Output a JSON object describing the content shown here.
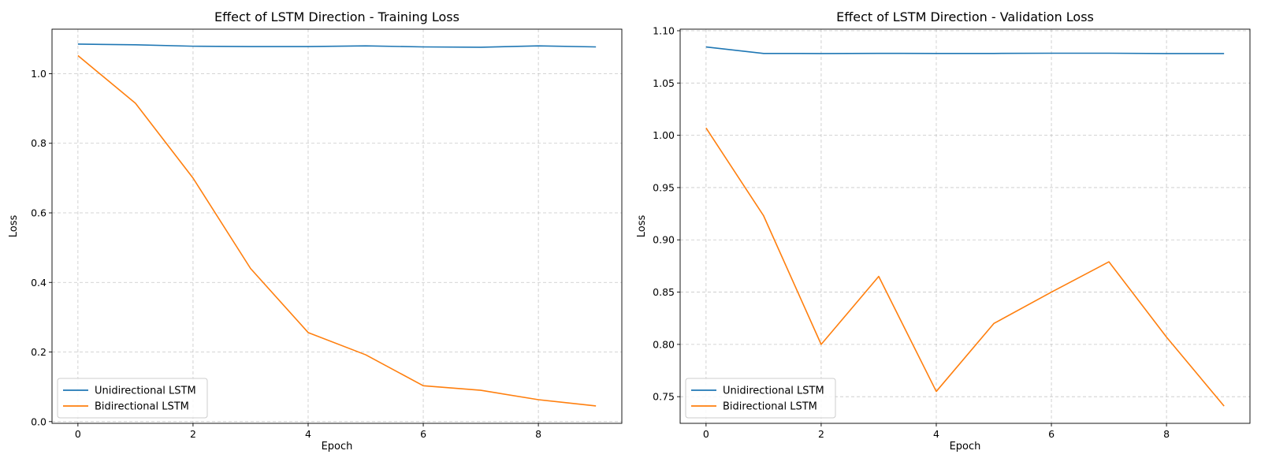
{
  "chart_data": [
    {
      "type": "line",
      "title": "Effect of LSTM Direction - Training Loss",
      "xlabel": "Epoch",
      "ylabel": "Loss",
      "xlim": [
        -0.45,
        9.45
      ],
      "ylim": [
        -0.005,
        1.128
      ],
      "xticks": [
        0,
        2,
        4,
        6,
        8
      ],
      "xtick_labels": [
        "0",
        "2",
        "4",
        "6",
        "8"
      ],
      "yticks": [
        0.0,
        0.2,
        0.4,
        0.6,
        0.8,
        1.0
      ],
      "ytick_labels": [
        "0.0",
        "0.2",
        "0.4",
        "0.6",
        "0.8",
        "1.0"
      ],
      "grid": true,
      "legend_position": "lower-left",
      "x": [
        0,
        1,
        2,
        3,
        4,
        5,
        6,
        7,
        8,
        9
      ],
      "series": [
        {
          "name": "Unidirectional LSTM",
          "color": "#1f77b4",
          "values": [
            1.085,
            1.083,
            1.079,
            1.078,
            1.078,
            1.08,
            1.077,
            1.076,
            1.08,
            1.077
          ]
        },
        {
          "name": "Bidirectional LSTM",
          "color": "#ff7f0e",
          "values": [
            1.052,
            0.915,
            0.7,
            0.44,
            0.256,
            0.192,
            0.103,
            0.09,
            0.063,
            0.045
          ]
        }
      ]
    },
    {
      "type": "line",
      "title": "Effect of LSTM Direction - Validation Loss",
      "xlabel": "Epoch",
      "ylabel": "Loss",
      "xlim": [
        -0.45,
        9.45
      ],
      "ylim": [
        0.7245,
        1.1015
      ],
      "xticks": [
        0,
        2,
        4,
        6,
        8
      ],
      "xtick_labels": [
        "0",
        "2",
        "4",
        "6",
        "8"
      ],
      "yticks": [
        0.75,
        0.8,
        0.85,
        0.9,
        0.95,
        1.0,
        1.05,
        1.1
      ],
      "ytick_labels": [
        "0.75",
        "0.80",
        "0.85",
        "0.90",
        "0.95",
        "1.00",
        "1.05",
        "1.10"
      ],
      "grid": true,
      "legend_position": "lower-left",
      "x": [
        0,
        1,
        2,
        3,
        4,
        5,
        6,
        7,
        8,
        9
      ],
      "series": [
        {
          "name": "Unidirectional LSTM",
          "color": "#1f77b4",
          "values": [
            1.0845,
            1.0783,
            1.0782,
            1.0784,
            1.0783,
            1.0783,
            1.0785,
            1.0785,
            1.0782,
            1.0782
          ]
        },
        {
          "name": "Bidirectional LSTM",
          "color": "#ff7f0e",
          "values": [
            1.007,
            0.923,
            0.8,
            0.865,
            0.755,
            0.82,
            0.85,
            0.879,
            0.807,
            0.741
          ]
        }
      ]
    }
  ]
}
